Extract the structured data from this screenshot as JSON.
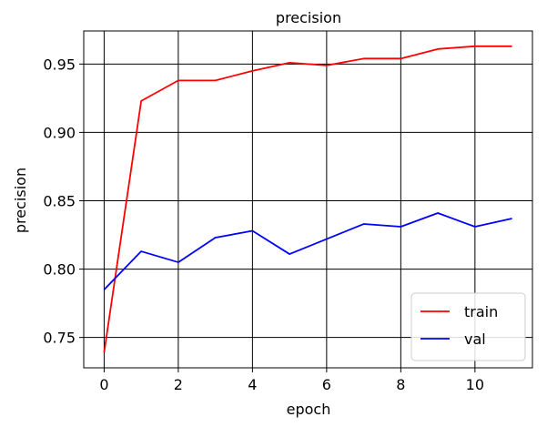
{
  "chart_data": {
    "type": "line",
    "title": "precision",
    "xlabel": "epoch",
    "ylabel": "precision",
    "x": [
      0,
      1,
      2,
      3,
      4,
      5,
      6,
      7,
      8,
      9,
      10,
      11
    ],
    "series": [
      {
        "name": "train",
        "color": "#ff0000",
        "values": [
          0.739,
          0.923,
          0.938,
          0.938,
          0.945,
          0.951,
          0.949,
          0.954,
          0.954,
          0.961,
          0.963,
          0.963
        ]
      },
      {
        "name": "val",
        "color": "#0000ff",
        "values": [
          0.785,
          0.813,
          0.805,
          0.823,
          0.828,
          0.811,
          0.822,
          0.833,
          0.831,
          0.841,
          0.831,
          0.837
        ]
      }
    ],
    "xlim": [
      -0.55,
      11.55
    ],
    "ylim": [
      0.7278,
      0.9742
    ],
    "xticks": [
      0,
      2,
      4,
      6,
      8,
      10
    ],
    "xtick_labels": [
      "0",
      "2",
      "4",
      "6",
      "8",
      "10"
    ],
    "yticks": [
      0.75,
      0.8,
      0.85,
      0.9,
      0.95
    ],
    "ytick_labels": [
      "0.75",
      "0.80",
      "0.85",
      "0.90",
      "0.95"
    ],
    "grid": true,
    "legend_position": "lower-right"
  }
}
